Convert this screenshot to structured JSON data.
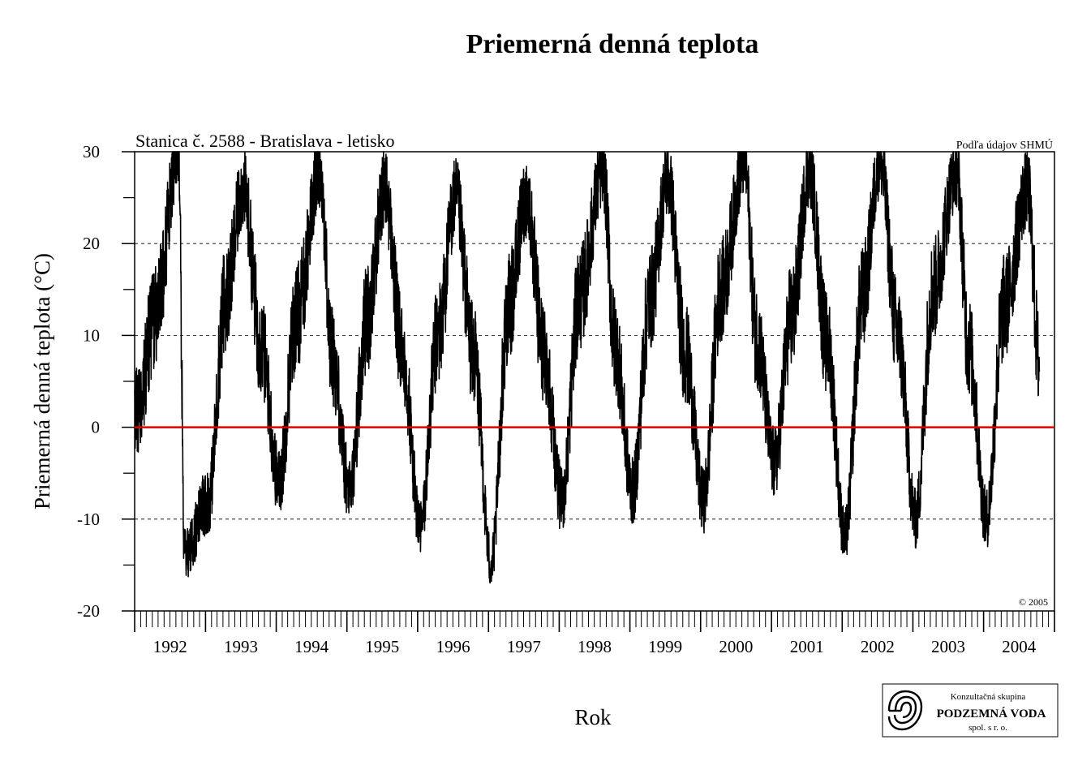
{
  "chart_data": {
    "type": "line",
    "title": "Priemerná denná teplota",
    "subtitle": "Stanica č. 2588 - Bratislava - letisko",
    "source": "Podľa údajov SHMÚ",
    "copyright": "© 2005",
    "xlabel": "Rok",
    "ylabel": "Priemerná denná teplota (°C)",
    "ylim": [
      -20,
      30
    ],
    "yticks": [
      "-20",
      "-10",
      "0",
      "10",
      "20",
      "30"
    ],
    "xlim": [
      "1992-01-01",
      "2004-12-31"
    ],
    "xticks": [
      "1992",
      "1993",
      "1994",
      "1995",
      "1996",
      "1997",
      "1998",
      "1999",
      "2000",
      "2001",
      "2002",
      "2003",
      "2004"
    ],
    "grid": "dashed at -10, 10, 20",
    "reference_line": {
      "y": 0,
      "color": "#e00000"
    },
    "series": [
      {
        "color": "#000000",
        "x": [
          "1992-01",
          "1992-04",
          "1992-08",
          "1992-09",
          "1993-01",
          "1993-04",
          "1993-07",
          "1993-10",
          "1994-01",
          "1994-04",
          "1994-08",
          "1994-10",
          "1995-01",
          "1995-04",
          "1995-07",
          "1995-10",
          "1996-01",
          "1996-04",
          "1996-07",
          "1996-10",
          "1997-01",
          "1997-04",
          "1997-07",
          "1997-10",
          "1998-01",
          "1998-04",
          "1998-08",
          "1998-10",
          "1999-01",
          "1999-04",
          "1999-07",
          "1999-10",
          "2000-01",
          "2000-04",
          "2000-08",
          "2000-10",
          "2001-01",
          "2001-04",
          "2001-07",
          "2001-10",
          "2002-01",
          "2002-04",
          "2002-07",
          "2002-10",
          "2003-01",
          "2003-04",
          "2003-08",
          "2003-10",
          "2004-01",
          "2004-04",
          "2004-08",
          "2004-10"
        ],
        "y": [
          2,
          12,
          30,
          -14,
          -8,
          14,
          26,
          9,
          -6,
          12,
          28,
          8,
          -7,
          12,
          26,
          8,
          -11,
          10,
          25,
          8,
          -15,
          13,
          25,
          8,
          -8,
          14,
          28,
          9,
          -7,
          14,
          27,
          8,
          -8,
          15,
          29,
          10,
          -4,
          12,
          28,
          9,
          -12,
          14,
          29,
          10,
          -10,
          15,
          28,
          9,
          -10,
          13,
          26,
          7
        ]
      }
    ],
    "logo": {
      "line1": "Konzultačná skupina",
      "line2": "PODZEMNÁ VODA",
      "line3": "spol. s r. o."
    }
  }
}
